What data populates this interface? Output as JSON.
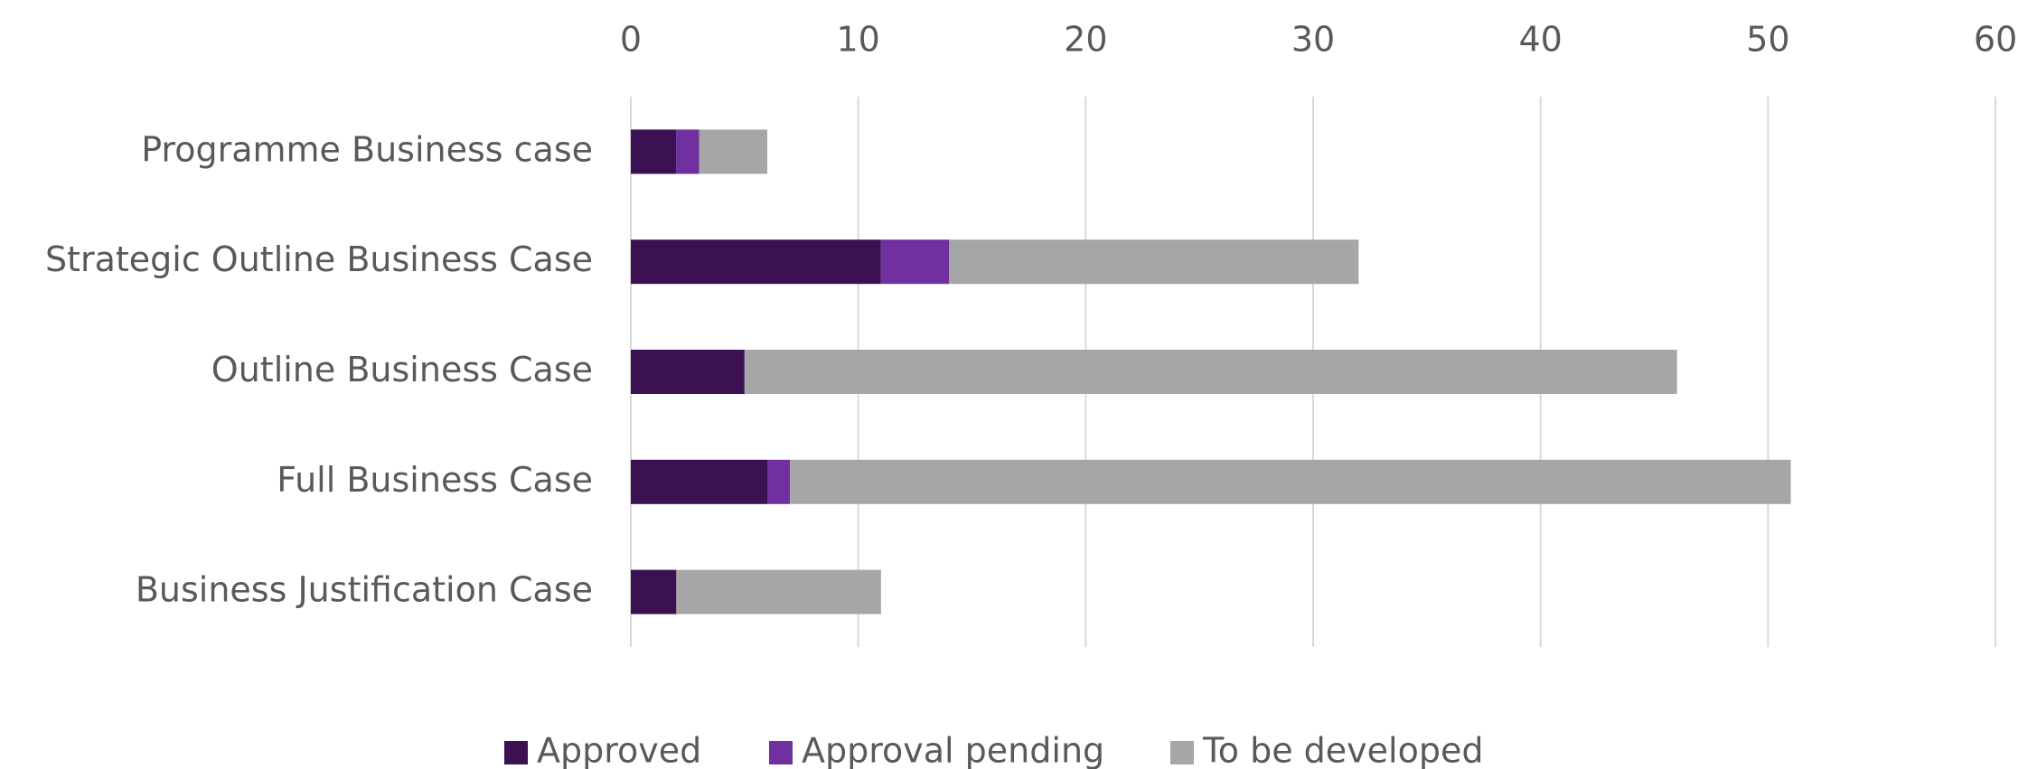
{
  "chart_data": {
    "type": "stacked_barh",
    "categories": [
      "Programme Business case",
      "Strategic Outline Business Case",
      "Outline Business Case",
      "Full Business Case",
      "Business Justification Case"
    ],
    "series": [
      {
        "name": "Approved",
        "color": "#3b1152",
        "values": [
          2,
          11,
          5,
          6,
          2
        ]
      },
      {
        "name": "Approval pending",
        "color": "#7030a0",
        "values": [
          1,
          3,
          0,
          1,
          0
        ]
      },
      {
        "name": "To be developed",
        "color": "#a6a6a6",
        "values": [
          3,
          18,
          41,
          44,
          9
        ]
      }
    ],
    "xlim": [
      0,
      60
    ],
    "xticks": [
      0,
      10,
      20,
      30,
      40,
      50,
      60
    ],
    "grid": true,
    "legend": "bottom"
  }
}
